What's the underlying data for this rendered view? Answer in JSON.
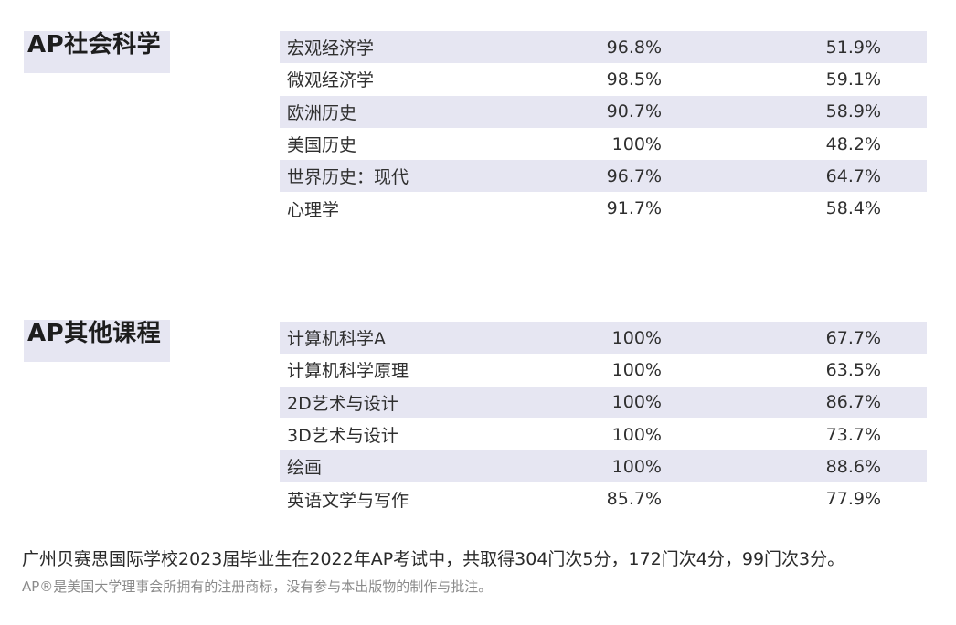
{
  "sections": [
    {
      "title": "AP社会科学",
      "rows": [
        {
          "subject": "宏观经济学",
          "col1": "96.8%",
          "col2": "51.9%"
        },
        {
          "subject": "微观经济学",
          "col1": "98.5%",
          "col2": "59.1%"
        },
        {
          "subject": "欧洲历史",
          "col1": "90.7%",
          "col2": "58.9%"
        },
        {
          "subject": "美国历史",
          "col1": "100%",
          "col2": "48.2%"
        },
        {
          "subject": "世界历史：现代",
          "col1": "96.7%",
          "col2": "64.7%"
        },
        {
          "subject": "心理学",
          "col1": "91.7%",
          "col2": "58.4%"
        }
      ]
    },
    {
      "title": "AP其他课程",
      "rows": [
        {
          "subject": "计算机科学A",
          "col1": "100%",
          "col2": "67.7%"
        },
        {
          "subject": "计算机科学原理",
          "col1": "100%",
          "col2": "63.5%"
        },
        {
          "subject": "2D艺术与设计",
          "col1": "100%",
          "col2": "86.7%"
        },
        {
          "subject": "3D艺术与设计",
          "col1": "100%",
          "col2": "73.7%"
        },
        {
          "subject": "绘画",
          "col1": "100%",
          "col2": "88.6%"
        },
        {
          "subject": "英语文学与写作",
          "col1": "85.7%",
          "col2": "77.9%"
        }
      ]
    }
  ],
  "footnotes": {
    "main": "广州贝赛思国际学校2023届毕业生在2022年AP考试中，共取得304门次5分，172门次4分，99门次3分。",
    "trademark": "AP®是美国大学理事会所拥有的注册商标，没有参与本出版物的制作与批注。"
  },
  "colors": {
    "shaded_row": "#e6e6f2",
    "text": "#2f2f2f",
    "muted_text": "#8a8a8a"
  }
}
